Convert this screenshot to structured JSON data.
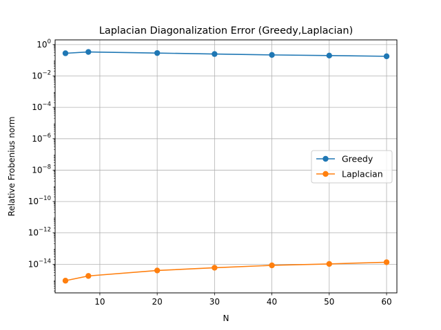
{
  "chart_data": {
    "type": "line",
    "title": "Laplacian Diagonalization Error (Greedy,Laplacian)",
    "xlabel": "N",
    "ylabel": "Relative Frobenius norm",
    "xlim": [
      2.2,
      61.8
    ],
    "ylim": [
      1.5e-16,
      2.0
    ],
    "yscale": "log",
    "grid": true,
    "legend_position": "center-right",
    "x_ticks": [
      10,
      20,
      30,
      40,
      50,
      60
    ],
    "y_ticks": [
      {
        "value": 1,
        "base": "10",
        "exp": "0"
      },
      {
        "value": 0.01,
        "base": "10",
        "exp": "−2"
      },
      {
        "value": 0.0001,
        "base": "10",
        "exp": "−4"
      },
      {
        "value": 1e-06,
        "base": "10",
        "exp": "−6"
      },
      {
        "value": 1e-08,
        "base": "10",
        "exp": "−8"
      },
      {
        "value": 1e-10,
        "base": "10",
        "exp": "−10"
      },
      {
        "value": 1e-12,
        "base": "10",
        "exp": "−12"
      },
      {
        "value": 1e-14,
        "base": "10",
        "exp": "−14"
      }
    ],
    "x": [
      4,
      8,
      20,
      30,
      40,
      50,
      60
    ],
    "series": [
      {
        "name": "Greedy",
        "color": "#1f77b4",
        "values": [
          0.28,
          0.34,
          0.29,
          0.25,
          0.22,
          0.2,
          0.18
        ]
      },
      {
        "name": "Laplacian",
        "color": "#ff7f0e",
        "values": [
          9e-16,
          1.8e-15,
          4e-15,
          6e-15,
          8.5e-15,
          1.05e-14,
          1.35e-14
        ]
      }
    ]
  }
}
